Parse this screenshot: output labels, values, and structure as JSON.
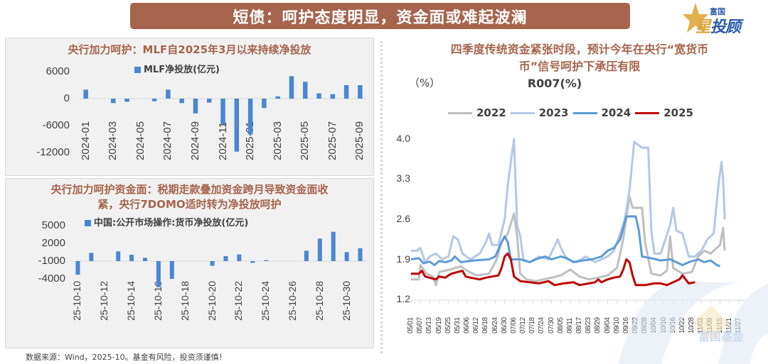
{
  "banner": {
    "title": "短债：呵护态度明显，资金面或难起波澜"
  },
  "logo": {
    "top_text": "富国",
    "xing": "星",
    "rest": "投顾"
  },
  "watermark": {
    "text": "富国基金"
  },
  "source": "数据来源：Wind，2025-10。基金有风险，投资须谨慎！",
  "colors": {
    "banner_bg": "#a6644c",
    "title_text": "#a6644c",
    "bar": "#4a86d4",
    "s2022": "#bfbfbf",
    "s2023": "#b4c7e7",
    "s2024": "#5b9bd5",
    "s2025": "#c00000"
  },
  "chart_data": [
    {
      "type": "bar",
      "title": "央行加力呵护：MLF自2025年3月以来持续净投放",
      "legend": [
        "MLF净投放(亿元)"
      ],
      "xlabel": "",
      "ylabel": "",
      "ylim": [
        -12000,
        6000
      ],
      "yticks": [
        "6000",
        "0",
        "-6000",
        "-12000"
      ],
      "xtick_labels": [
        "2024-01",
        "2024-03",
        "2024-05",
        "2024-07",
        "2024-09",
        "2024-11",
        "2025-01",
        "2025-03",
        "2025-05",
        "2025-07",
        "2025-09"
      ],
      "categories": [
        "2024-01",
        "2024-02",
        "2024-03",
        "2024-04",
        "2024-05",
        "2024-06",
        "2024-07",
        "2024-08",
        "2024-09",
        "2024-10",
        "2024-11",
        "2024-12",
        "2025-01",
        "2025-02",
        "2025-03",
        "2025-04",
        "2025-05",
        "2025-06",
        "2025-07",
        "2025-08",
        "2025-09"
      ],
      "series": [
        {
          "name": "MLF净投放(亿元)",
          "values": [
            2000,
            0,
            -1000,
            -700,
            0,
            -600,
            2000,
            -1000,
            -3300,
            -900,
            -5700,
            -11800,
            -8000,
            -2100,
            500,
            5000,
            3750,
            1180,
            1000,
            3000,
            3000
          ]
        }
      ],
      "grid": false,
      "legend_position": "top"
    },
    {
      "type": "bar",
      "title": "央行加力呵护资金面：税期走款叠加资金跨月导致资金面收紧，央行7DOMO适时转为净投放呵护",
      "title_lines": [
        "央行加力呵护资金面：税期走款叠加资金跨月导致资金面收",
        "紧，央行7DOMO适时转为净投放呵护"
      ],
      "legend": [
        "中国:公开市场操作:货币净投放(亿元)"
      ],
      "xlabel": "",
      "ylabel": "",
      "ylim": [
        -4000,
        5000
      ],
      "yticks": [
        "5000",
        "2000",
        "-1000",
        "-4000"
      ],
      "xtick_labels": [
        "25-10-10",
        "25-10-12",
        "25-10-14",
        "25-10-16",
        "25-10-18",
        "25-10-20",
        "25-10-22",
        "25-10-24",
        "25-10-26",
        "25-10-28",
        "25-10-30"
      ],
      "categories": [
        "25-10-10",
        "25-10-11",
        "25-10-12",
        "25-10-13",
        "25-10-14",
        "25-10-15",
        "25-10-16",
        "25-10-17",
        "25-10-18",
        "25-10-19",
        "25-10-20",
        "25-10-21",
        "25-10-22",
        "25-10-23",
        "25-10-24",
        "25-10-25",
        "25-10-26",
        "25-10-27",
        "25-10-28",
        "25-10-29",
        "25-10-30",
        "25-10-31"
      ],
      "series": [
        {
          "name": "中国:公开市场操作:货币净投放(亿元)",
          "values": [
            -2300,
            1400,
            0,
            1640,
            1080,
            560,
            -4400,
            -3000,
            0,
            0,
            -800,
            840,
            1120,
            -280,
            160,
            0,
            0,
            1760,
            3800,
            4960,
            1520,
            2200
          ]
        }
      ],
      "grid": false,
      "legend_position": "top"
    },
    {
      "type": "line",
      "title": "四季度传统资金紧张时段，预计今年在央行“宽货币”信号呵护下承压有限",
      "title_lines": [
        "四季度传统资金紧张时段，预计今年在央行“宽货币",
        "币”信号呵护下承压有限"
      ],
      "subtitle": "R007(%)",
      "ylabel": "（%）",
      "ylim": [
        1.2,
        4.0
      ],
      "yticks": [
        "4.0",
        "3.3",
        "2.6",
        "1.9",
        "1.2"
      ],
      "xtick_labels": [
        "05/01",
        "05/07",
        "05/13",
        "05/19",
        "05/25",
        "05/31",
        "06/06",
        "06/12",
        "06/18",
        "06/24",
        "06/30",
        "07/06",
        "07/12",
        "07/18",
        "07/24",
        "07/30",
        "08/05",
        "08/11",
        "08/17",
        "08/23",
        "08/29",
        "09/04",
        "09/10",
        "09/16",
        "09/22",
        "09/28",
        "10/04",
        "10/10",
        "10/16",
        "10/22",
        "10/28",
        "11/03",
        "11/09",
        "11/15",
        "11/21",
        "11/27"
      ],
      "x_unit": "day index from 05/01",
      "legend_position": "top",
      "grid": false,
      "series": [
        {
          "name": "2022",
          "color": "#bfbfbf",
          "points": [
            [
              0,
              1.55
            ],
            [
              5,
              1.55
            ],
            [
              6,
              1.8
            ],
            [
              10,
              1.65
            ],
            [
              14,
              1.6
            ],
            [
              16,
              1.45
            ],
            [
              18,
              1.68
            ],
            [
              25,
              1.72
            ],
            [
              32,
              1.78
            ],
            [
              36,
              1.7
            ],
            [
              42,
              1.62
            ],
            [
              50,
              1.65
            ],
            [
              55,
              1.9
            ],
            [
              58,
              2.2
            ],
            [
              62,
              2.35
            ],
            [
              66,
              2.7
            ],
            [
              68,
              2.3
            ],
            [
              70,
              1.65
            ],
            [
              74,
              1.55
            ],
            [
              80,
              1.52
            ],
            [
              90,
              1.58
            ],
            [
              96,
              1.62
            ],
            [
              102,
              1.72
            ],
            [
              108,
              1.6
            ],
            [
              114,
              1.55
            ],
            [
              120,
              1.58
            ],
            [
              126,
              1.62
            ],
            [
              132,
              1.75
            ],
            [
              136,
              2.25
            ],
            [
              140,
              3.0
            ],
            [
              142,
              2.8
            ],
            [
              148,
              2.8
            ],
            [
              150,
              2.2
            ],
            [
              154,
              1.65
            ],
            [
              160,
              1.62
            ],
            [
              164,
              1.7
            ],
            [
              166,
              2.3
            ],
            [
              168,
              1.75
            ],
            [
              174,
              1.65
            ],
            [
              180,
              1.68
            ],
            [
              184,
              1.95
            ],
            [
              188,
              2.05
            ],
            [
              192,
              2.0
            ],
            [
              198,
              2.15
            ],
            [
              200,
              2.45
            ],
            [
              201,
              2.05
            ]
          ]
        },
        {
          "name": "2023",
          "color": "#b4c7e7",
          "points": [
            [
              0,
              2.05
            ],
            [
              4,
              2.05
            ],
            [
              6,
              2.1
            ],
            [
              9,
              1.85
            ],
            [
              12,
              1.95
            ],
            [
              16,
              2.0
            ],
            [
              20,
              1.9
            ],
            [
              24,
              1.95
            ],
            [
              27,
              2.3
            ],
            [
              30,
              2.25
            ],
            [
              33,
              2.0
            ],
            [
              38,
              1.9
            ],
            [
              44,
              2.0
            ],
            [
              48,
              2.2
            ],
            [
              50,
              2.35
            ],
            [
              52,
              2.15
            ],
            [
              56,
              2.15
            ],
            [
              60,
              2.6
            ],
            [
              62,
              3.2
            ],
            [
              64,
              3.6
            ],
            [
              66,
              4.0
            ],
            [
              68,
              2.5
            ],
            [
              70,
              2.3
            ],
            [
              72,
              1.9
            ],
            [
              76,
              1.85
            ],
            [
              82,
              1.95
            ],
            [
              88,
              1.9
            ],
            [
              94,
              2.25
            ],
            [
              96,
              2.1
            ],
            [
              100,
              1.9
            ],
            [
              106,
              1.85
            ],
            [
              112,
              1.95
            ],
            [
              118,
              1.85
            ],
            [
              126,
              1.95
            ],
            [
              130,
              2.05
            ],
            [
              134,
              2.35
            ],
            [
              137,
              2.6
            ],
            [
              140,
              3.1
            ],
            [
              143,
              3.95
            ],
            [
              148,
              3.85
            ],
            [
              152,
              3.85
            ],
            [
              154,
              2.4
            ],
            [
              156,
              2.0
            ],
            [
              160,
              2.0
            ],
            [
              166,
              2.5
            ],
            [
              168,
              2.8
            ],
            [
              170,
              2.4
            ],
            [
              174,
              2.35
            ],
            [
              178,
              1.95
            ],
            [
              182,
              1.95
            ],
            [
              186,
              2.05
            ],
            [
              190,
              2.25
            ],
            [
              194,
              2.35
            ],
            [
              197,
              3.2
            ],
            [
              199,
              3.6
            ],
            [
              200,
              3.3
            ],
            [
              201,
              2.6
            ]
          ]
        },
        {
          "name": "2024",
          "color": "#5b9bd5",
          "points": [
            [
              0,
              1.9
            ],
            [
              5,
              1.92
            ],
            [
              8,
              1.83
            ],
            [
              12,
              1.86
            ],
            [
              15,
              1.8
            ],
            [
              18,
              1.87
            ],
            [
              22,
              1.85
            ],
            [
              26,
              1.88
            ],
            [
              28,
              1.95
            ],
            [
              32,
              1.85
            ],
            [
              40,
              1.88
            ],
            [
              50,
              1.9
            ],
            [
              54,
              1.95
            ],
            [
              58,
              2.2
            ],
            [
              60,
              2.3
            ],
            [
              62,
              2.2
            ],
            [
              64,
              1.9
            ],
            [
              70,
              1.9
            ],
            [
              76,
              1.85
            ],
            [
              80,
              1.9
            ],
            [
              86,
              1.95
            ],
            [
              90,
              1.9
            ],
            [
              96,
              1.95
            ],
            [
              100,
              1.92
            ],
            [
              104,
              1.85
            ],
            [
              110,
              1.88
            ],
            [
              116,
              1.9
            ],
            [
              122,
              1.95
            ],
            [
              126,
              2.05
            ],
            [
              130,
              2.1
            ],
            [
              134,
              2.25
            ],
            [
              138,
              2.65
            ],
            [
              144,
              2.65
            ],
            [
              146,
              2.4
            ],
            [
              148,
              1.95
            ],
            [
              154,
              1.92
            ],
            [
              160,
              1.88
            ],
            [
              166,
              1.9
            ],
            [
              170,
              1.85
            ],
            [
              174,
              1.8
            ],
            [
              178,
              1.85
            ],
            [
              184,
              1.9
            ],
            [
              188,
              1.85
            ],
            [
              192,
              1.88
            ],
            [
              196,
              1.8
            ],
            [
              198,
              1.78
            ]
          ]
        },
        {
          "name": "2025",
          "color": "#c00000",
          "points": [
            [
              0,
              1.65
            ],
            [
              5,
              1.65
            ],
            [
              7,
              1.7
            ],
            [
              9,
              1.6
            ],
            [
              13,
              1.57
            ],
            [
              16,
              1.55
            ],
            [
              18,
              1.6
            ],
            [
              22,
              1.58
            ],
            [
              24,
              1.62
            ],
            [
              26,
              1.65
            ],
            [
              30,
              1.68
            ],
            [
              33,
              1.7
            ],
            [
              35,
              1.6
            ],
            [
              38,
              1.58
            ],
            [
              44,
              1.55
            ],
            [
              48,
              1.58
            ],
            [
              52,
              1.6
            ],
            [
              56,
              1.62
            ],
            [
              58,
              1.75
            ],
            [
              60,
              1.95
            ],
            [
              62,
              2.0
            ],
            [
              64,
              1.9
            ],
            [
              66,
              1.6
            ],
            [
              70,
              1.52
            ],
            [
              76,
              1.5
            ],
            [
              82,
              1.48
            ],
            [
              88,
              1.52
            ],
            [
              92,
              1.45
            ],
            [
              98,
              1.48
            ],
            [
              104,
              1.5
            ],
            [
              108,
              1.45
            ],
            [
              114,
              1.48
            ],
            [
              118,
              1.5
            ],
            [
              120,
              1.55
            ],
            [
              122,
              1.5
            ],
            [
              126,
              1.55
            ],
            [
              130,
              1.58
            ],
            [
              134,
              1.6
            ],
            [
              136,
              1.72
            ],
            [
              138,
              1.9
            ],
            [
              140,
              1.85
            ],
            [
              142,
              1.62
            ],
            [
              144,
              1.45
            ],
            [
              150,
              1.45
            ],
            [
              156,
              1.48
            ],
            [
              160,
              1.48
            ],
            [
              164,
              1.45
            ],
            [
              168,
              1.5
            ],
            [
              172,
              1.55
            ],
            [
              174,
              1.62
            ],
            [
              176,
              1.55
            ],
            [
              178,
              1.48
            ],
            [
              182,
              1.5
            ]
          ]
        }
      ]
    }
  ]
}
